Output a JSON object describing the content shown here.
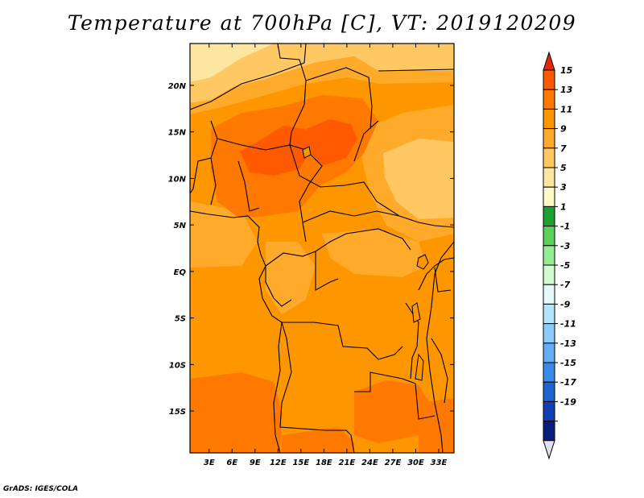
{
  "title": "Temperature at 700hPa [C], VT: 2019120209",
  "credit": "GrADS: IGES/COLA",
  "map": {
    "lat_labels": [
      "20N",
      "15N",
      "10N",
      "5N",
      "EQ",
      "5S",
      "10S",
      "15S"
    ],
    "lat_values": [
      20,
      15,
      10,
      5,
      0,
      -5,
      -10,
      -15
    ],
    "lon_labels": [
      "3E",
      "6E",
      "9E",
      "12E",
      "15E",
      "18E",
      "21E",
      "24E",
      "27E",
      "30E",
      "33E"
    ],
    "lon_values": [
      3,
      6,
      9,
      12,
      15,
      18,
      21,
      24,
      27,
      30,
      33
    ],
    "lat_range": [
      -19.5,
      24.5
    ],
    "lon_range": [
      0.5,
      35
    ]
  },
  "colorbar": {
    "labels": [
      "15",
      "13",
      "11",
      "9",
      "7",
      "5",
      "3",
      "1",
      "-1",
      "-3",
      "-5",
      "-7",
      "-9",
      "-11",
      "-13",
      "-15",
      "-17",
      "-19"
    ],
    "colors": [
      "#ff5a00",
      "#ff7800",
      "#fe9600",
      "#ffaa2a",
      "#ffc862",
      "#fde7a0",
      "#fdfac8",
      "#1ea032",
      "#5ad25a",
      "#94ec94",
      "#d2fad2",
      "#e8f8f8",
      "#b4e4fc",
      "#8ccbfa",
      "#64acf4",
      "#3c8ae8",
      "#1e64d2",
      "#1040b4",
      "#0a1e80"
    ],
    "top_triangle_color": "#e1280a",
    "bottom_triangle_color": "#e0e0f8"
  }
}
